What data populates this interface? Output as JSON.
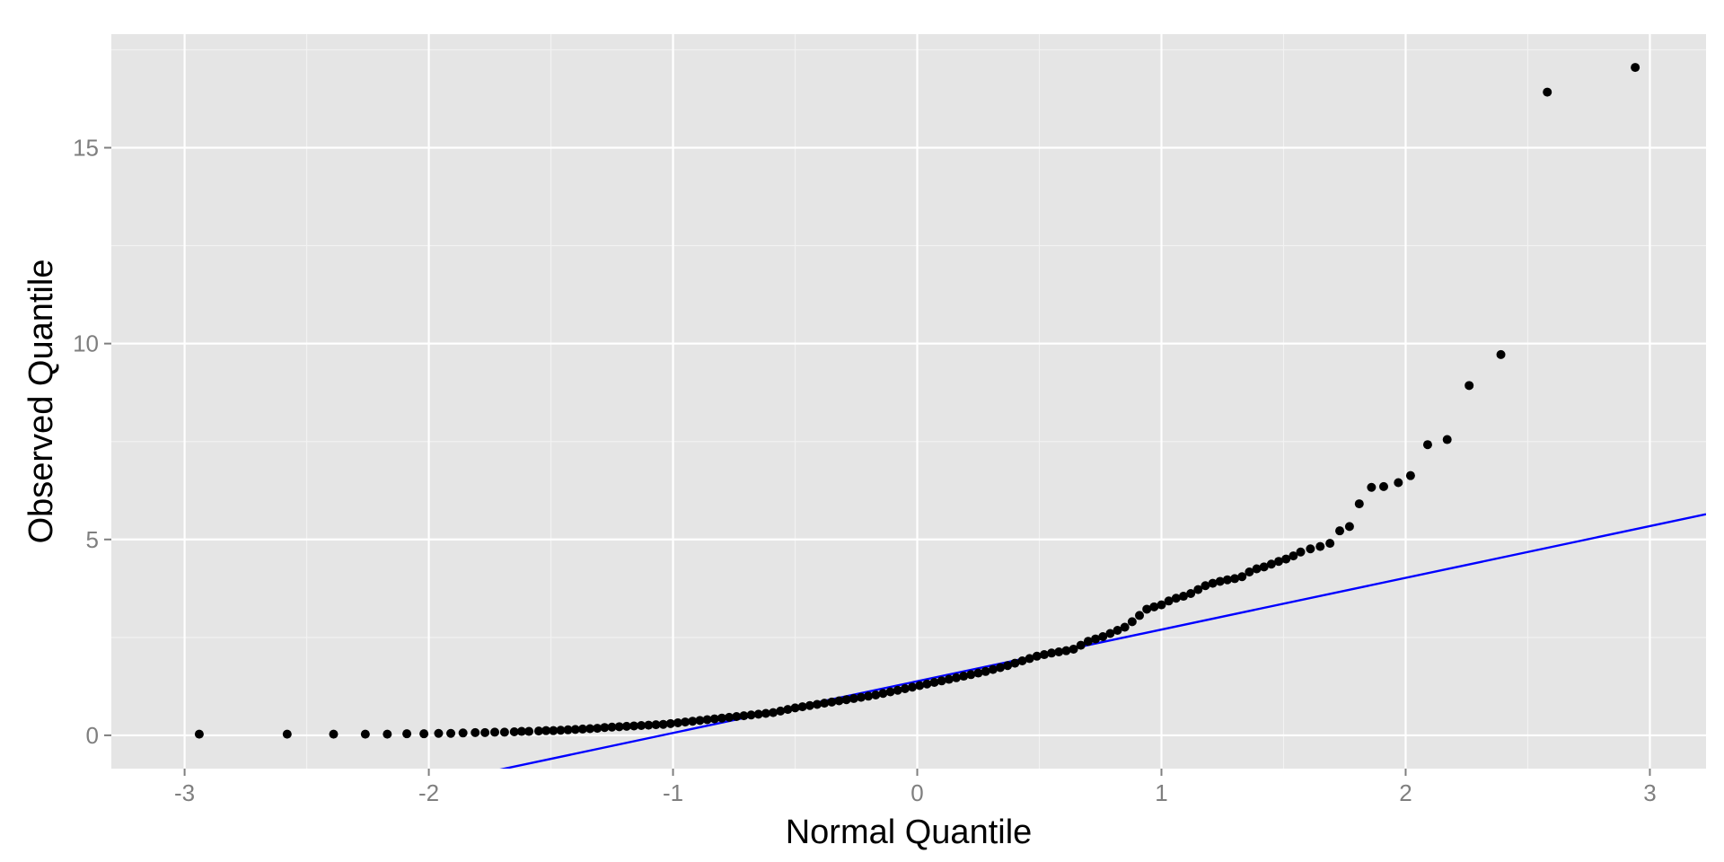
{
  "chart_data": {
    "type": "scatter",
    "title": "",
    "xlabel": "Normal Quantile",
    "ylabel": "Observed Quantile",
    "xlim": [
      -3.3,
      3.23
    ],
    "ylim": [
      -0.85,
      17.9
    ],
    "x_ticks": [
      -3,
      -2,
      -1,
      0,
      1,
      2,
      3
    ],
    "x_tick_labels": [
      "-3",
      "-2",
      "-1",
      "0",
      "1",
      "2",
      "3"
    ],
    "y_ticks": [
      0,
      5,
      10,
      15
    ],
    "y_tick_labels": [
      "0",
      "5",
      "10",
      "15"
    ],
    "grid": true,
    "legend": "none",
    "colors": {
      "panel": "#e5e5e5",
      "grid_major": "#ffffff",
      "grid_minor": "#f2f2f2",
      "points": "#000000",
      "reference_line": "#0000ff"
    },
    "reference_line": {
      "intercept": 1.38,
      "slope": 1.32
    },
    "points": [
      [
        -2.94,
        0.03
      ],
      [
        -2.58,
        0.03
      ],
      [
        -2.39,
        0.03
      ],
      [
        -2.26,
        0.03
      ],
      [
        -2.17,
        0.03
      ],
      [
        -2.09,
        0.04
      ],
      [
        -2.02,
        0.04
      ],
      [
        -1.96,
        0.05
      ],
      [
        -1.91,
        0.05
      ],
      [
        -1.86,
        0.06
      ],
      [
        -1.81,
        0.07
      ],
      [
        -1.77,
        0.07
      ],
      [
        -1.73,
        0.08
      ],
      [
        -1.69,
        0.08
      ],
      [
        -1.65,
        0.09
      ],
      [
        -1.62,
        0.1
      ],
      [
        -1.59,
        0.1
      ],
      [
        -1.55,
        0.11
      ],
      [
        -1.52,
        0.12
      ],
      [
        -1.49,
        0.12
      ],
      [
        -1.46,
        0.13
      ],
      [
        -1.43,
        0.14
      ],
      [
        -1.4,
        0.15
      ],
      [
        -1.37,
        0.16
      ],
      [
        -1.34,
        0.17
      ],
      [
        -1.31,
        0.18
      ],
      [
        -1.28,
        0.2
      ],
      [
        -1.25,
        0.21
      ],
      [
        -1.22,
        0.22
      ],
      [
        -1.19,
        0.23
      ],
      [
        -1.16,
        0.24
      ],
      [
        -1.13,
        0.25
      ],
      [
        -1.1,
        0.26
      ],
      [
        -1.07,
        0.27
      ],
      [
        -1.04,
        0.28
      ],
      [
        -1.01,
        0.3
      ],
      [
        -0.98,
        0.32
      ],
      [
        -0.95,
        0.34
      ],
      [
        -0.92,
        0.36
      ],
      [
        -0.89,
        0.38
      ],
      [
        -0.86,
        0.4
      ],
      [
        -0.83,
        0.42
      ],
      [
        -0.8,
        0.44
      ],
      [
        -0.77,
        0.46
      ],
      [
        -0.74,
        0.48
      ],
      [
        -0.71,
        0.5
      ],
      [
        -0.68,
        0.52
      ],
      [
        -0.65,
        0.54
      ],
      [
        -0.62,
        0.56
      ],
      [
        -0.59,
        0.58
      ],
      [
        -0.56,
        0.62
      ],
      [
        -0.53,
        0.66
      ],
      [
        -0.5,
        0.7
      ],
      [
        -0.47,
        0.73
      ],
      [
        -0.44,
        0.76
      ],
      [
        -0.41,
        0.79
      ],
      [
        -0.38,
        0.82
      ],
      [
        -0.35,
        0.85
      ],
      [
        -0.32,
        0.88
      ],
      [
        -0.29,
        0.91
      ],
      [
        -0.26,
        0.94
      ],
      [
        -0.23,
        0.97
      ],
      [
        -0.2,
        1.0
      ],
      [
        -0.17,
        1.03
      ],
      [
        -0.14,
        1.07
      ],
      [
        -0.11,
        1.11
      ],
      [
        -0.08,
        1.15
      ],
      [
        -0.05,
        1.19
      ],
      [
        -0.02,
        1.23
      ],
      [
        0.01,
        1.27
      ],
      [
        0.04,
        1.31
      ],
      [
        0.07,
        1.35
      ],
      [
        0.1,
        1.39
      ],
      [
        0.13,
        1.43
      ],
      [
        0.16,
        1.47
      ],
      [
        0.19,
        1.51
      ],
      [
        0.22,
        1.55
      ],
      [
        0.25,
        1.59
      ],
      [
        0.28,
        1.63
      ],
      [
        0.31,
        1.68
      ],
      [
        0.34,
        1.73
      ],
      [
        0.37,
        1.78
      ],
      [
        0.4,
        1.84
      ],
      [
        0.43,
        1.9
      ],
      [
        0.46,
        1.96
      ],
      [
        0.49,
        2.02
      ],
      [
        0.52,
        2.06
      ],
      [
        0.55,
        2.1
      ],
      [
        0.58,
        2.13
      ],
      [
        0.61,
        2.16
      ],
      [
        0.64,
        2.2
      ],
      [
        0.67,
        2.3
      ],
      [
        0.7,
        2.4
      ],
      [
        0.73,
        2.46
      ],
      [
        0.76,
        2.52
      ],
      [
        0.79,
        2.6
      ],
      [
        0.82,
        2.68
      ],
      [
        0.85,
        2.76
      ],
      [
        0.88,
        2.9
      ],
      [
        0.91,
        3.06
      ],
      [
        0.94,
        3.22
      ],
      [
        0.97,
        3.28
      ],
      [
        1.0,
        3.33
      ],
      [
        1.03,
        3.43
      ],
      [
        1.06,
        3.5
      ],
      [
        1.09,
        3.55
      ],
      [
        1.12,
        3.62
      ],
      [
        1.15,
        3.72
      ],
      [
        1.18,
        3.82
      ],
      [
        1.21,
        3.88
      ],
      [
        1.24,
        3.93
      ],
      [
        1.27,
        3.97
      ],
      [
        1.3,
        4.0
      ],
      [
        1.33,
        4.05
      ],
      [
        1.36,
        4.17
      ],
      [
        1.39,
        4.25
      ],
      [
        1.42,
        4.3
      ],
      [
        1.45,
        4.37
      ],
      [
        1.48,
        4.44
      ],
      [
        1.51,
        4.5
      ],
      [
        1.54,
        4.58
      ],
      [
        1.57,
        4.68
      ],
      [
        1.61,
        4.76
      ],
      [
        1.65,
        4.82
      ],
      [
        1.69,
        4.9
      ],
      [
        1.73,
        5.22
      ],
      [
        1.77,
        5.33
      ],
      [
        1.81,
        5.91
      ],
      [
        1.86,
        6.33
      ],
      [
        1.91,
        6.35
      ],
      [
        1.97,
        6.45
      ],
      [
        2.02,
        6.63
      ],
      [
        2.09,
        7.42
      ],
      [
        2.17,
        7.55
      ],
      [
        2.26,
        8.93
      ],
      [
        2.39,
        9.72
      ],
      [
        2.58,
        16.42
      ],
      [
        2.94,
        17.05
      ]
    ]
  }
}
